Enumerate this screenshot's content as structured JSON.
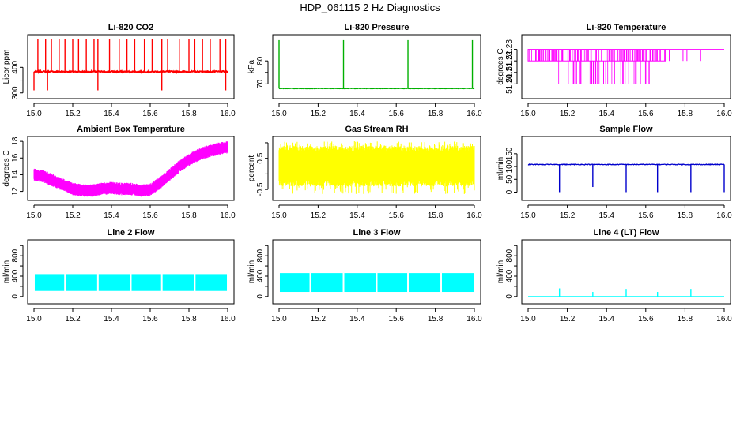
{
  "figure": {
    "title": "HDP_061115 2 Hz Diagnostics"
  },
  "chart_data": [
    {
      "id": "co2",
      "type": "line",
      "title": "Li-820 CO2",
      "ylabel": "Licor ppm",
      "color": "#ff0000",
      "xlim": [
        15.0,
        16.0
      ],
      "ylim": [
        290,
        515
      ],
      "xticks": [
        15.0,
        15.2,
        15.4,
        15.6,
        15.8,
        16.0
      ],
      "xtick_labels": [
        "15.0",
        "15.2",
        "15.4",
        "15.6",
        "15.8",
        "16.0"
      ],
      "yticks": [
        300,
        350,
        400
      ],
      "ytick_labels": [
        "300",
        "",
        "400"
      ],
      "series": [
        {
          "baseline": 383,
          "noise": 2.5,
          "spike_x": [
            15.02,
            15.06,
            15.09,
            15.13,
            15.16,
            15.2,
            15.23,
            15.27,
            15.31,
            15.33,
            15.39,
            15.44,
            15.48,
            15.52,
            15.57,
            15.61,
            15.66,
            15.69,
            15.75,
            15.8,
            15.83,
            15.87,
            15.91,
            15.96,
            15.99
          ],
          "spike_to": 510,
          "dip_x": [
            15.0,
            15.07,
            15.33,
            15.66,
            15.99
          ],
          "dip_to": 310
        }
      ]
    },
    {
      "id": "pressure",
      "type": "line",
      "title": "Li-820 Pressure",
      "ylabel": "kPa",
      "color": "#00b000",
      "xlim": [
        15.0,
        16.0
      ],
      "ylim": [
        65,
        90
      ],
      "xticks": [
        15.0,
        15.2,
        15.4,
        15.6,
        15.8,
        16.0
      ],
      "xtick_labels": [
        "15.0",
        "15.2",
        "15.4",
        "15.6",
        "15.8",
        "16.0"
      ],
      "yticks": [
        70,
        75,
        80
      ],
      "ytick_labels": [
        "70",
        "",
        "80"
      ],
      "series": [
        {
          "baseline": 68,
          "noise": 0.1,
          "spike_x": [
            15.0,
            15.33,
            15.66,
            15.99
          ],
          "spike_to": 89
        }
      ]
    },
    {
      "id": "temperature",
      "type": "line",
      "title": "Li-820 Temperature",
      "ylabel": "degrees C",
      "color": "#ff00ff",
      "xlim": [
        15.0,
        16.0
      ],
      "ylim": [
        51.19,
        51.24
      ],
      "xticks": [
        15.0,
        15.2,
        15.4,
        15.6,
        15.8,
        16.0
      ],
      "xtick_labels": [
        "15.0",
        "15.2",
        "15.4",
        "15.6",
        "15.8",
        "16.0"
      ],
      "yticks": [
        51.2,
        51.21,
        51.22,
        51.23
      ],
      "ytick_labels": [
        "51.20",
        "51.21",
        "51.22",
        "51.23"
      ],
      "series": [
        {
          "levels": [
            51.22,
            51.23
          ],
          "dense_until": 15.7,
          "sparse_x": [
            15.72,
            15.79,
            15.81,
            15.88
          ],
          "dip_to": 51.2
        }
      ]
    },
    {
      "id": "ambient",
      "type": "line",
      "title": "Ambient Box Temperature",
      "ylabel": "degrees C",
      "color": "#ff00ff",
      "xlim": [
        15.0,
        16.0
      ],
      "ylim": [
        11.3,
        18.2
      ],
      "xticks": [
        15.0,
        15.2,
        15.4,
        15.6,
        15.8,
        16.0
      ],
      "xtick_labels": [
        "15.0",
        "15.2",
        "15.4",
        "15.6",
        "15.8",
        "16.0"
      ],
      "yticks": [
        12,
        14,
        16,
        18
      ],
      "ytick_labels": [
        "12",
        "14",
        "16",
        "18"
      ],
      "series": [
        {
          "x": [
            15.0,
            15.05,
            15.1,
            15.15,
            15.2,
            15.25,
            15.3,
            15.35,
            15.4,
            15.45,
            15.5,
            15.55,
            15.6,
            15.65,
            15.7,
            15.75,
            15.8,
            15.85,
            15.9,
            15.95,
            16.0
          ],
          "y": [
            14.0,
            13.8,
            13.3,
            12.8,
            12.3,
            12.1,
            12.1,
            12.3,
            12.4,
            12.3,
            12.3,
            12.1,
            12.2,
            13.0,
            14.0,
            15.0,
            15.8,
            16.4,
            16.8,
            17.1,
            17.3
          ],
          "band": 1.0
        }
      ]
    },
    {
      "id": "rh",
      "type": "line",
      "title": "Gas Stream RH",
      "ylabel": "percent",
      "color": "#ffff00",
      "xlim": [
        15.0,
        16.0
      ],
      "ylim": [
        -0.75,
        1.1
      ],
      "xticks": [
        15.0,
        15.2,
        15.4,
        15.6,
        15.8,
        16.0
      ],
      "xtick_labels": [
        "15.0",
        "15.2",
        "15.4",
        "15.6",
        "15.8",
        "16.0"
      ],
      "yticks": [
        -0.5,
        0.0,
        0.5,
        1.0
      ],
      "ytick_labels": [
        "-0.5",
        "",
        "0.5",
        ""
      ],
      "series": [
        {
          "low": -0.3,
          "high": 0.8,
          "min": -0.65,
          "max": 1.05
        }
      ]
    },
    {
      "id": "sample_flow",
      "type": "line",
      "title": "Sample Flow",
      "ylabel": "ml/min",
      "color": "#0000cc",
      "xlim": [
        15.0,
        16.0
      ],
      "ylim": [
        -20,
        205
      ],
      "xticks": [
        15.0,
        15.2,
        15.4,
        15.6,
        15.8,
        16.0
      ],
      "xtick_labels": [
        "15.0",
        "15.2",
        "15.4",
        "15.6",
        "15.8",
        "16.0"
      ],
      "yticks": [
        0,
        50,
        100,
        150
      ],
      "ytick_labels": [
        "0",
        "50",
        "100",
        "150"
      ],
      "series": [
        {
          "baseline": 108,
          "noise": 1.5,
          "dip_x": [
            15.16,
            15.33,
            15.5,
            15.66,
            15.83,
            16.0
          ],
          "dip_to": 0,
          "mid_dip_to": 20
        }
      ]
    },
    {
      "id": "line2",
      "type": "line",
      "title": "Line 2 Flow",
      "ylabel": "ml/min",
      "color": "#00ffff",
      "xlim": [
        15.0,
        16.0
      ],
      "ylim": [
        -80,
        1050
      ],
      "xticks": [
        15.0,
        15.2,
        15.4,
        15.6,
        15.8,
        16.0
      ],
      "xtick_labels": [
        "15.0",
        "15.2",
        "15.4",
        "15.6",
        "15.8",
        "16.0"
      ],
      "yticks": [
        0,
        200,
        400,
        600,
        800,
        1000
      ],
      "ytick_labels": [
        "0",
        "",
        "400",
        "",
        "800",
        ""
      ],
      "series": [
        {
          "low": 110,
          "high": 440,
          "gaps": [
            15.16,
            15.33,
            15.5,
            15.66,
            15.83
          ]
        }
      ]
    },
    {
      "id": "line3",
      "type": "line",
      "title": "Line 3 Flow",
      "ylabel": "ml/min",
      "color": "#00ffff",
      "xlim": [
        15.0,
        16.0
      ],
      "ylim": [
        -80,
        1050
      ],
      "xticks": [
        15.0,
        15.2,
        15.4,
        15.6,
        15.8,
        16.0
      ],
      "xtick_labels": [
        "15.0",
        "15.2",
        "15.4",
        "15.6",
        "15.8",
        "16.0"
      ],
      "yticks": [
        0,
        200,
        400,
        600,
        800,
        1000
      ],
      "ytick_labels": [
        "0",
        "",
        "400",
        "",
        "800",
        ""
      ],
      "series": [
        {
          "low": 90,
          "high": 460,
          "gaps": [
            15.16,
            15.33,
            15.5,
            15.66,
            15.83
          ]
        }
      ]
    },
    {
      "id": "line4",
      "type": "line",
      "title": "Line 4 (LT) Flow",
      "ylabel": "ml/min",
      "color": "#00ffff",
      "xlim": [
        15.0,
        16.0
      ],
      "ylim": [
        -80,
        1050
      ],
      "xticks": [
        15.0,
        15.2,
        15.4,
        15.6,
        15.8,
        16.0
      ],
      "xtick_labels": [
        "15.0",
        "15.2",
        "15.4",
        "15.6",
        "15.8",
        "16.0"
      ],
      "yticks": [
        0,
        200,
        400,
        600,
        800,
        1000
      ],
      "ytick_labels": [
        "0",
        "",
        "400",
        "",
        "800",
        ""
      ],
      "series": [
        {
          "baseline": 0,
          "spike_x": [
            15.16,
            15.33,
            15.5,
            15.66,
            15.83
          ],
          "spike_to": [
            160,
            90,
            150,
            90,
            150
          ]
        }
      ]
    }
  ]
}
